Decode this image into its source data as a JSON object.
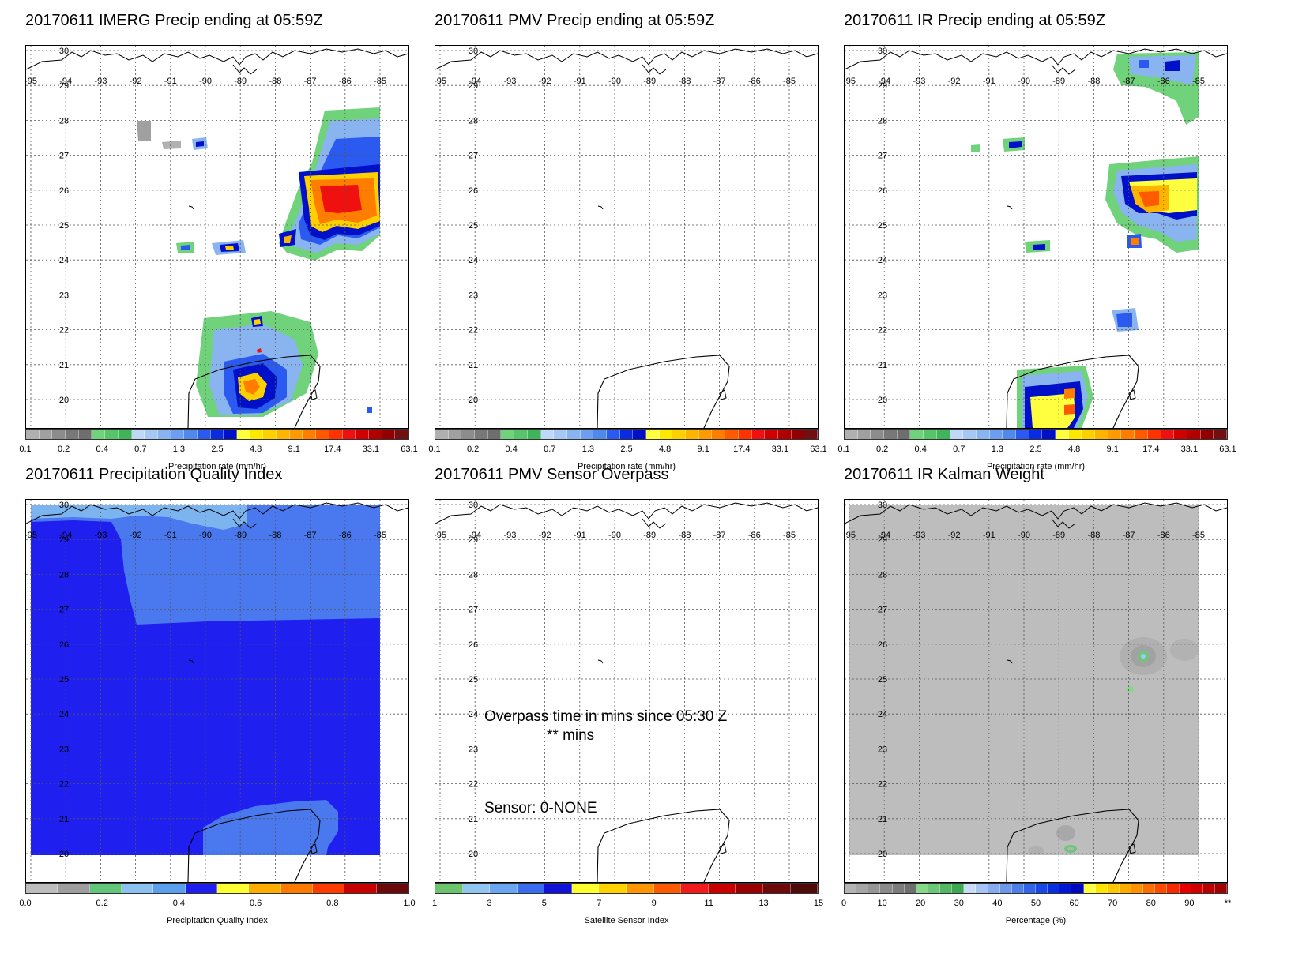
{
  "colors": {
    "precip_scale": [
      "#b0b0b0",
      "#a0a0a0",
      "#8c8c8c",
      "#787878",
      "#6e6e6e",
      "#70d27a",
      "#58c46a",
      "#40b45a",
      "#c0d8f8",
      "#a8c8f4",
      "#8ab4f0",
      "#6e9ef0",
      "#5088ec",
      "#2a5af0",
      "#0a2ae4",
      "#0010c8",
      "#ffff40",
      "#ffe800",
      "#ffd000",
      "#ffb400",
      "#ff9a00",
      "#ff7e00",
      "#ff5a00",
      "#ff3200",
      "#f01010",
      "#d00000",
      "#b00000",
      "#900000",
      "#701010"
    ],
    "quality_scale": [
      "#bdbdbd",
      "#9e9e9e",
      "#63c77b",
      "#8cc2f0",
      "#5aa0ef",
      "#1f1ff0",
      "#ffff33",
      "#ffad00",
      "#ff7a00",
      "#ff3b00",
      "#c80000",
      "#6a0a0a"
    ],
    "sensor_scale": [
      "#6cc46c",
      "#92c6f2",
      "#6aa6f2",
      "#3a6cf0",
      "#1212d8",
      "#ffff30",
      "#ffd200",
      "#ff9600",
      "#ff5a00",
      "#f21a1a",
      "#c80000",
      "#9a0000",
      "#6e0a0a",
      "#500a0a"
    ],
    "kalman_scale": [
      "#b4b4b4",
      "#a6a6a6",
      "#969696",
      "#8a8a8a",
      "#7c7c7c",
      "#6e6e6e",
      "#88d88a",
      "#6cc878",
      "#52b862",
      "#3ea852",
      "#c8dcf8",
      "#a8c4f4",
      "#88acf0",
      "#6c98ec",
      "#4e80ea",
      "#3264ea",
      "#1848e8",
      "#0830e0",
      "#0018d4",
      "#0008c0",
      "#ffff40",
      "#ffe400",
      "#ffc800",
      "#ffac00",
      "#ff9000",
      "#ff6e00",
      "#ff4a00",
      "#f82800",
      "#e80000",
      "#d00000",
      "#b80000",
      "#a00000"
    ],
    "quality_fill_dark": "#1f1ff0",
    "quality_fill_light": "#4a78ef",
    "quality_fill_lightest": "#7cb4f0",
    "kalman_fill": "#bdbdbd"
  },
  "map": {
    "lon_labels": [
      "-95",
      "-94",
      "-93",
      "-92",
      "-91",
      "-90",
      "-89",
      "-88",
      "-87",
      "-86",
      "-85"
    ],
    "lat_labels": [
      "30",
      "29",
      "28",
      "27",
      "26",
      "25",
      "24",
      "23",
      "22",
      "21",
      "20"
    ]
  },
  "panels": [
    {
      "title": "20170611 IMERG Precip ending at 05:59Z",
      "colorbar": {
        "ticks": [
          "0.1",
          "0.2",
          "0.4",
          "0.7",
          "1.3",
          "2.5",
          "4.8",
          "9.1",
          "17.4",
          "33.1",
          "63.1"
        ],
        "label": "Precipitation rate (mm/hr)"
      }
    },
    {
      "title": "20170611 PMV Precip ending at 05:59Z",
      "colorbar": {
        "ticks": [
          "0.1",
          "0.2",
          "0.4",
          "0.7",
          "1.3",
          "2.5",
          "4.8",
          "9.1",
          "17.4",
          "33.1",
          "63.1"
        ],
        "label": "Precipitation rate (mm/hr)"
      }
    },
    {
      "title": "20170611 IR Precip ending at 05:59Z",
      "colorbar": {
        "ticks": [
          "0.1",
          "0.2",
          "0.4",
          "0.7",
          "1.3",
          "2.5",
          "4.8",
          "9.1",
          "17.4",
          "33.1",
          "63.1"
        ],
        "label": "Precipitation rate (mm/hr)"
      }
    },
    {
      "title": "20170611 Precipitation Quality Index",
      "colorbar": {
        "ticks": [
          "0.0",
          "0.2",
          "0.4",
          "0.6",
          "0.8",
          "1.0"
        ],
        "label": "Precipitation Quality Index"
      }
    },
    {
      "title": "20170611 PMV Sensor Overpass",
      "colorbar": {
        "ticks": [
          "1",
          "3",
          "5",
          "7",
          "9",
          "11",
          "13",
          "15"
        ],
        "label": "Satellite Sensor Index"
      },
      "overpass_text": "Overpass time in mins since 05:30 Z",
      "overpass_value": "** mins",
      "sensor_text": "Sensor:   0-NONE"
    },
    {
      "title": "20170611 IR Kalman Weight",
      "colorbar": {
        "ticks": [
          "0",
          "10",
          "20",
          "30",
          "40",
          "50",
          "60",
          "70",
          "80",
          "90",
          "**"
        ],
        "label": "Percentage (%)"
      }
    }
  ]
}
